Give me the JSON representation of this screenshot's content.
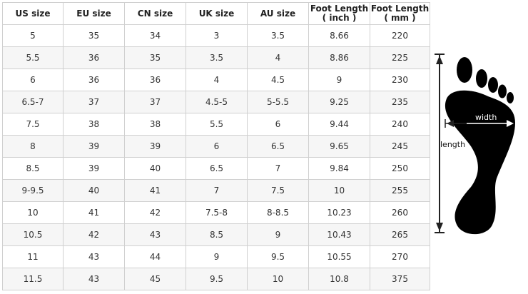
{
  "table": {
    "headers": [
      "US size",
      "EU size",
      "CN size",
      "UK size",
      "AU size",
      "Foot Length\n( inch )",
      "Foot Length\n( mm )"
    ],
    "header_lines": [
      [
        "US size"
      ],
      [
        "EU size"
      ],
      [
        "CN size"
      ],
      [
        "UK size"
      ],
      [
        "AU size"
      ],
      [
        "Foot Length",
        "( inch )"
      ],
      [
        "Foot Length",
        "( mm )"
      ]
    ],
    "rows": [
      [
        "5",
        "35",
        "34",
        "3",
        "3.5",
        "8.66",
        "220"
      ],
      [
        "5.5",
        "36",
        "35",
        "3.5",
        "4",
        "8.86",
        "225"
      ],
      [
        "6",
        "36",
        "36",
        "4",
        "4.5",
        "9",
        "230"
      ],
      [
        "6.5-7",
        "37",
        "37",
        "4.5-5",
        "5-5.5",
        "9.25",
        "235"
      ],
      [
        "7.5",
        "38",
        "38",
        "5.5",
        "6",
        "9.44",
        "240"
      ],
      [
        "8",
        "39",
        "39",
        "6",
        "6.5",
        "9.65",
        "245"
      ],
      [
        "8.5",
        "39",
        "40",
        "6.5",
        "7",
        "9.84",
        "250"
      ],
      [
        "9-9.5",
        "40",
        "41",
        "7",
        "7.5",
        "10",
        "255"
      ],
      [
        "10",
        "41",
        "42",
        "7.5-8",
        "8-8.5",
        "10.23",
        "260"
      ],
      [
        "10.5",
        "42",
        "43",
        "8.5",
        "9",
        "10.43",
        "265"
      ],
      [
        "11",
        "43",
        "44",
        "9",
        "9.5",
        "10.55",
        "270"
      ],
      [
        "11.5",
        "43",
        "45",
        "9.5",
        "10",
        "10.8",
        "375"
      ]
    ]
  },
  "diagram": {
    "width_label": "width",
    "length_label": "length"
  }
}
